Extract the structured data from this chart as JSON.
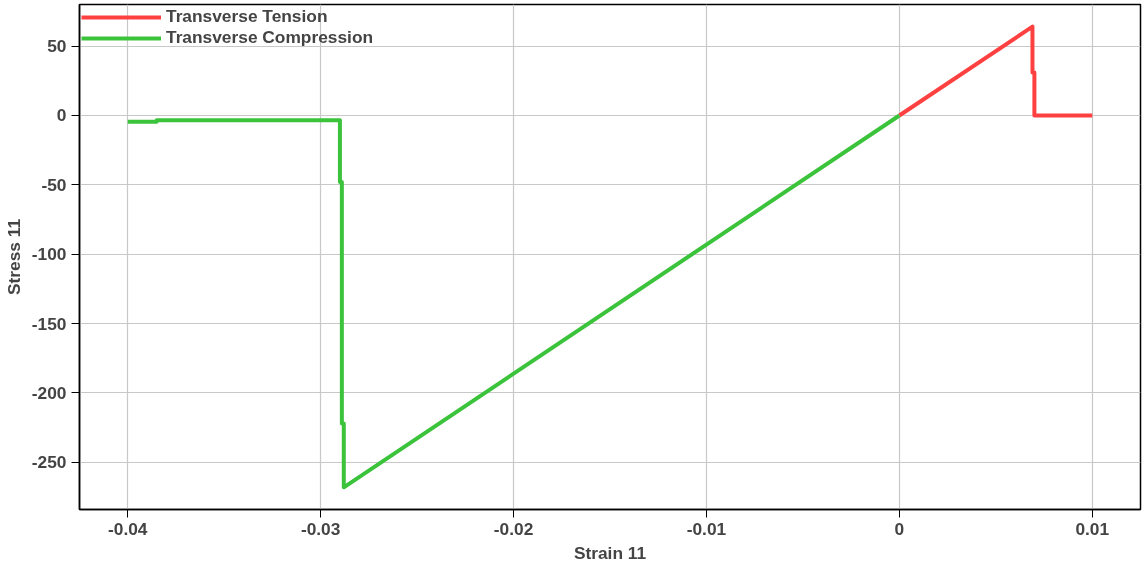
{
  "chart_data": {
    "type": "line",
    "xlabel": "Strain 11",
    "ylabel": "Stress 11",
    "xlim": [
      -0.0425,
      0.0125
    ],
    "ylim": [
      -284,
      80
    ],
    "xticks": [
      -0.04,
      -0.03,
      -0.02,
      -0.01,
      0,
      0.01
    ],
    "yticks": [
      -250,
      -200,
      -150,
      -100,
      -50,
      0,
      50
    ],
    "grid": true,
    "legend": "top left",
    "marker": "none",
    "line_style": "solid",
    "series": [
      {
        "name": "Transverse Tension",
        "color": "#ff4040",
        "x": [
          0,
          0.0069,
          0.0069,
          0.007,
          0.007,
          0.01
        ],
        "values": [
          0,
          64,
          31,
          31,
          0,
          0
        ]
      },
      {
        "name": "Transverse Compression",
        "color": "#3cc33c",
        "x": [
          -0.04,
          -0.0385,
          -0.0385,
          -0.029,
          -0.029,
          -0.0289,
          -0.0289,
          -0.0288,
          -0.0288,
          0
        ],
        "values": [
          -4.5,
          -4.5,
          -3.5,
          -3.5,
          -48,
          -48,
          -222,
          -222,
          -268,
          0
        ]
      }
    ]
  }
}
